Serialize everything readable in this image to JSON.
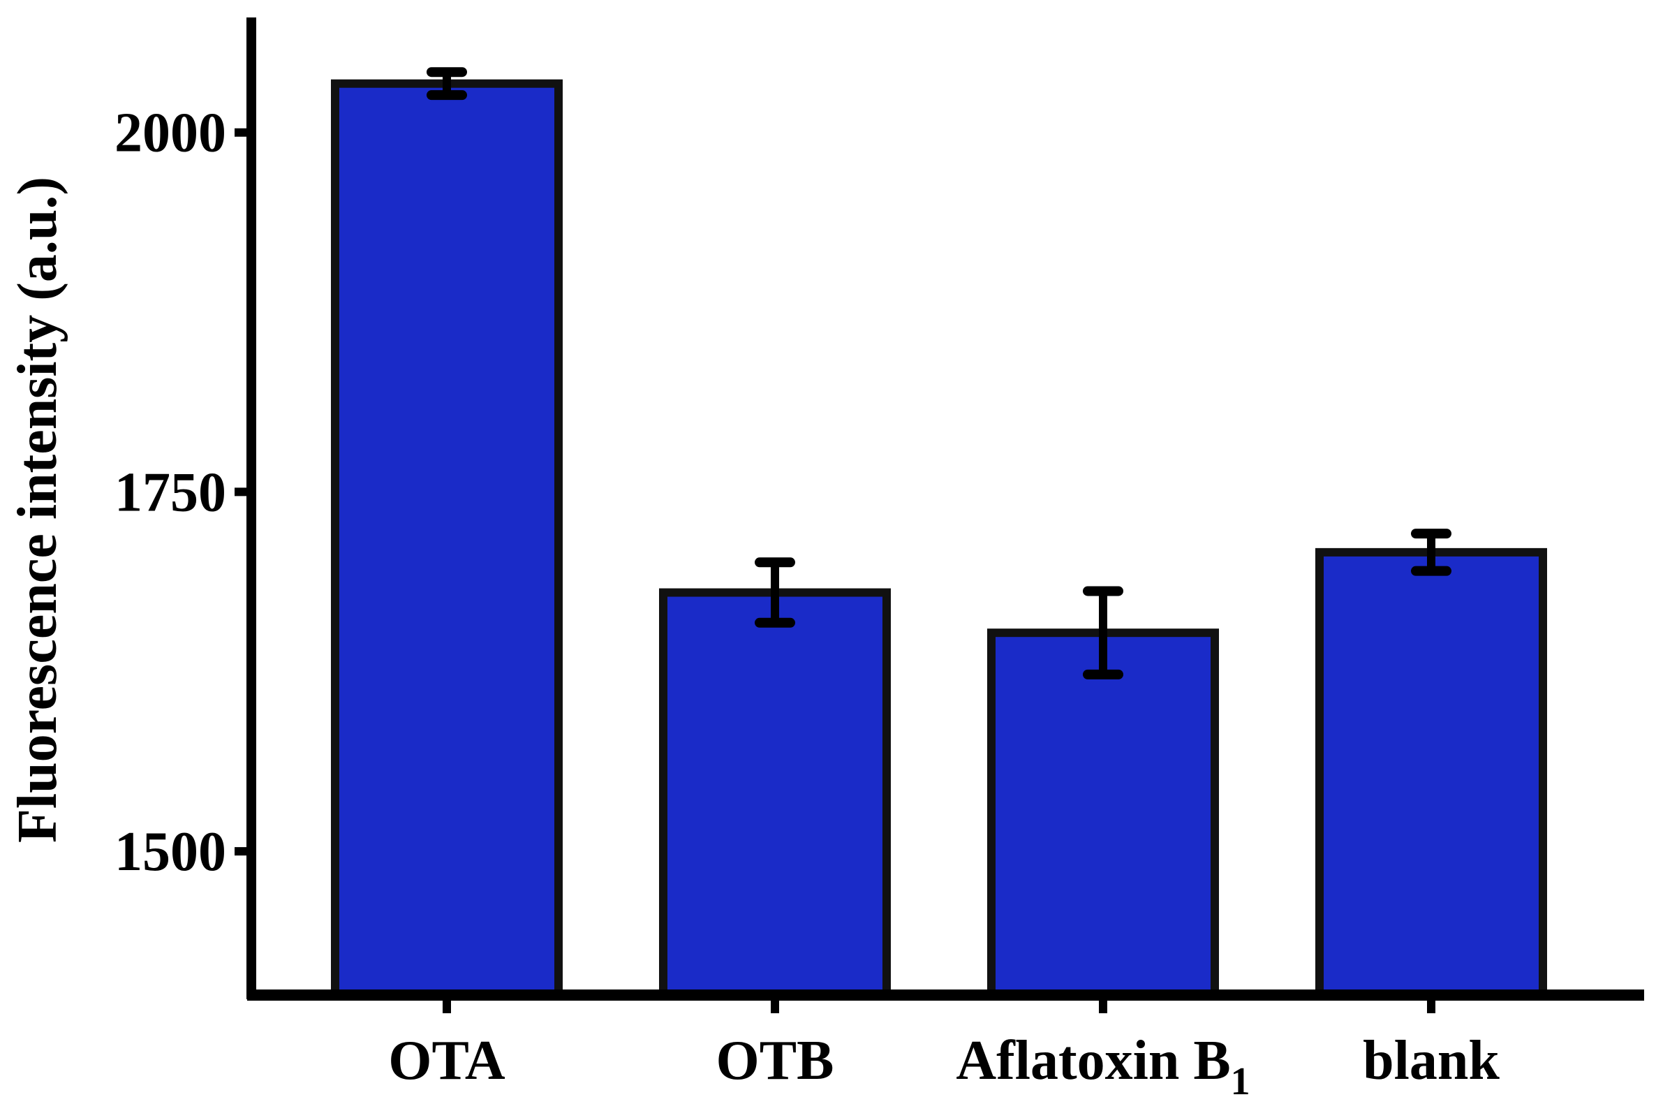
{
  "chart_data": {
    "type": "bar",
    "title": "",
    "xlabel": "",
    "ylabel": "Fluorescence intensity (a.u.)",
    "categories": [
      {
        "main": "OTA",
        "sub": ""
      },
      {
        "main": "OTB",
        "sub": ""
      },
      {
        "main": "Aflatoxin B",
        "sub": "1"
      },
      {
        "main": "blank",
        "sub": ""
      }
    ],
    "values": [
      2034,
      1680,
      1652,
      1708
    ],
    "errors": [
      8,
      21,
      29,
      13
    ],
    "ylim": [
      1400,
      2080
    ],
    "yticks": [
      1500,
      1750,
      2000
    ],
    "grid": false,
    "legend": "none",
    "colors": {
      "bar_fill": "#1a2bc8",
      "bar_edge": "#111111",
      "axis": "#000000",
      "error_bar": "#000000"
    }
  }
}
